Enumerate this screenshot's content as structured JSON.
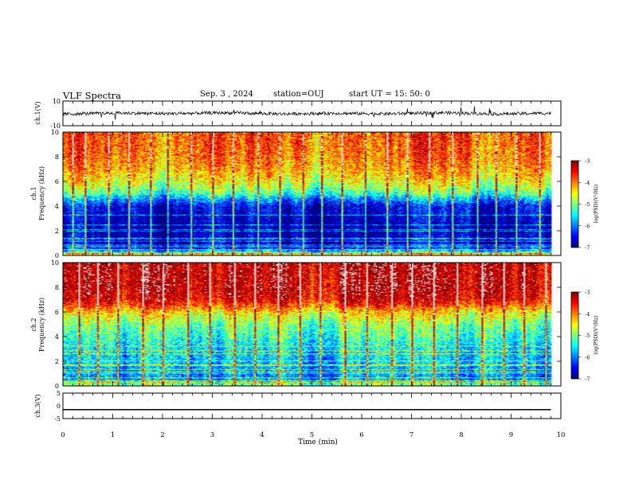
{
  "header": {
    "title": "VLF Spectra",
    "date": "Sep. 3  , 2024",
    "station": "station=OUJ",
    "start_ut": "start  UT =   15: 50: 0"
  },
  "chart_data": [
    {
      "type": "line",
      "panel": "waveform ch.1",
      "ylabel": "ch.1(V)",
      "ylim": [
        -10,
        10
      ],
      "y_ticks": [
        "10",
        "-10"
      ],
      "xlim": [
        0,
        10
      ],
      "series": [
        {
          "values": [
            -0.6,
            0.3,
            -0.2,
            0.5,
            -0.4,
            0.1,
            -0.3,
            0.6,
            -0.5,
            0.2
          ]
        }
      ],
      "color": "#000000"
    },
    {
      "type": "heatmap",
      "panel": "spectrogram ch.1",
      "ylabel": "ch.1\nFrequency (kHz)",
      "ylim": [
        0,
        10
      ],
      "y_ticks": [
        "0",
        "2",
        "4",
        "6",
        "8",
        "10"
      ],
      "xlim": [
        0,
        10
      ],
      "colorbar": {
        "label": "log(PSD)(V²/Hz)",
        "range": [
          -7,
          -3
        ],
        "ticks": [
          "-3",
          "-4",
          "-5",
          "-6",
          "-7"
        ]
      },
      "log_psd_profile": {
        "freq_khz": [
          0,
          0.5,
          1,
          2,
          3,
          4,
          4.5,
          5,
          5.5,
          6,
          7,
          8,
          9,
          10
        ],
        "log_psd": [
          -4.5,
          -6.3,
          -6.8,
          -6.9,
          -6.8,
          -6.6,
          -6.0,
          -5.3,
          -4.9,
          -4.6,
          -4.2,
          -4.0,
          -3.9,
          -3.9
        ]
      },
      "vertical_bursts_min": [
        0.2,
        0.45,
        0.9,
        1.3,
        1.75,
        2.1,
        2.55,
        3.0,
        3.4,
        3.9,
        4.35,
        4.8,
        5.2,
        5.6,
        6.05,
        6.5,
        6.9,
        7.35,
        7.8,
        8.3,
        8.7,
        9.1,
        9.55
      ]
    },
    {
      "type": "heatmap",
      "panel": "spectrogram ch.2",
      "ylabel": "ch.2\nFrequency (kHz)",
      "ylim": [
        0,
        10
      ],
      "y_ticks": [
        "0",
        "2",
        "4",
        "6",
        "8",
        "10"
      ],
      "xlim": [
        0,
        10
      ],
      "colorbar": {
        "label": "log(PSD)(V²/Hz)",
        "range": [
          -7,
          -3
        ],
        "ticks": [
          "-3",
          "-4",
          "-5",
          "-6",
          "-7"
        ]
      },
      "log_psd_profile": {
        "freq_khz": [
          0,
          0.5,
          1,
          2,
          3,
          4,
          5,
          6,
          6.5,
          7,
          8,
          9,
          10
        ],
        "log_psd": [
          -4.8,
          -5.9,
          -6.0,
          -5.7,
          -5.6,
          -5.3,
          -5.0,
          -4.4,
          -3.8,
          -3.4,
          -3.2,
          -3.2,
          -3.2
        ]
      },
      "vertical_bursts_min": [
        0.3,
        0.7,
        1.1,
        1.6,
        2.0,
        2.5,
        2.95,
        3.45,
        3.85,
        4.3,
        4.75,
        5.15,
        5.65,
        6.1,
        6.6,
        7.0,
        7.45,
        7.9,
        8.4,
        8.85,
        9.25,
        9.7
      ]
    },
    {
      "type": "line",
      "panel": "waveform ch.3",
      "ylabel": "ch.3(V)",
      "ylim": [
        -5,
        5
      ],
      "y_ticks": [
        "5",
        "0",
        "-5"
      ],
      "xlim": [
        0,
        10
      ],
      "series": [
        {
          "values": [
            -1.5,
            -1.5
          ]
        }
      ],
      "color": "#000000"
    }
  ],
  "x_axis": {
    "label": "Time (min)",
    "range": [
      0,
      10
    ],
    "ticks": [
      "0",
      "1",
      "2",
      "3",
      "4",
      "5",
      "6",
      "7",
      "8",
      "9",
      "10"
    ],
    "data_end_min": 9.8
  }
}
